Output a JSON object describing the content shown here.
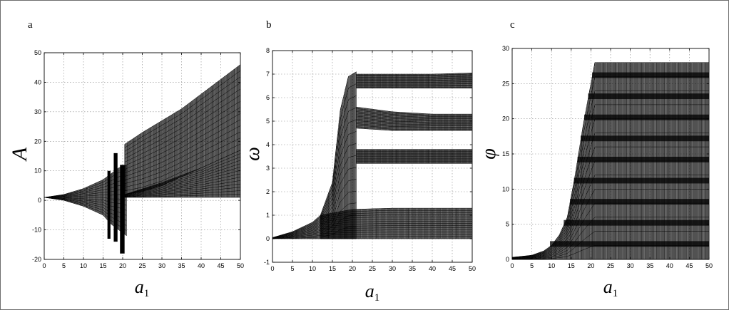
{
  "chart_data": [
    {
      "type": "scatter",
      "panel_label": "a",
      "xlabel": "a",
      "xlabel_sub": "1",
      "ylabel": "A",
      "xlim": [
        0,
        50
      ],
      "ylim": [
        -20,
        50
      ],
      "xticks": [
        0,
        5,
        10,
        15,
        20,
        25,
        30,
        35,
        40,
        45,
        50
      ],
      "yticks": [
        -20,
        -10,
        0,
        10,
        20,
        30,
        40,
        50
      ],
      "grid": true,
      "bands": [
        {
          "x": [
            0,
            5,
            10,
            15,
            17,
            19,
            21
          ],
          "y_low": [
            1,
            0,
            -2,
            -5,
            -8,
            -10,
            -12
          ],
          "y_high": [
            1,
            2,
            4,
            7,
            9,
            11,
            12
          ]
        },
        {
          "x": [
            20.5,
            25,
            30,
            35,
            40,
            45,
            50
          ],
          "y_low": [
            2,
            3,
            5,
            8,
            11,
            14,
            17
          ],
          "y_high": [
            19,
            23,
            27,
            31,
            36,
            41,
            46
          ]
        },
        {
          "x": [
            20.5,
            30,
            40,
            50
          ],
          "y_low": [
            1,
            1,
            1,
            1
          ],
          "y_high": [
            2,
            6,
            11,
            17
          ]
        }
      ],
      "islands": [
        {
          "x": [
            16.2,
            16.8
          ],
          "y": [
            -13,
            10
          ]
        },
        {
          "x": [
            17.8,
            18.6
          ],
          "y": [
            -14,
            16
          ]
        },
        {
          "x": [
            19.4,
            20.4
          ],
          "y": [
            -18,
            12
          ]
        }
      ]
    },
    {
      "type": "scatter",
      "panel_label": "b",
      "xlabel": "a",
      "xlabel_sub": "1",
      "ylabel": "ω",
      "xlim": [
        0,
        50
      ],
      "ylim": [
        -1,
        8
      ],
      "xticks": [
        0,
        5,
        10,
        15,
        20,
        25,
        30,
        35,
        40,
        45,
        50
      ],
      "yticks": [
        -1,
        0,
        1,
        2,
        3,
        4,
        5,
        6,
        7,
        8
      ],
      "grid": true,
      "bands": [
        {
          "x": [
            0,
            5,
            10,
            12,
            15,
            17,
            19,
            21
          ],
          "y_low": [
            0,
            0,
            0,
            0,
            0,
            0,
            0,
            0
          ],
          "y_high": [
            0.05,
            0.3,
            0.7,
            1.0,
            2.4,
            5.5,
            6.9,
            7.1
          ]
        },
        {
          "x": [
            21,
            30,
            40,
            50
          ],
          "y_low": [
            6.4,
            6.4,
            6.4,
            6.4
          ],
          "y_high": [
            7.0,
            7.0,
            7.0,
            7.05
          ]
        },
        {
          "x": [
            21,
            30,
            40,
            50
          ],
          "y_low": [
            4.7,
            4.6,
            4.6,
            4.6
          ],
          "y_high": [
            5.6,
            5.4,
            5.3,
            5.3
          ]
        },
        {
          "x": [
            21,
            30,
            40,
            50
          ],
          "y_low": [
            3.2,
            3.2,
            3.2,
            3.2
          ],
          "y_high": [
            3.8,
            3.8,
            3.8,
            3.8
          ]
        },
        {
          "x": [
            12,
            20,
            30,
            40,
            50
          ],
          "y_low": [
            0,
            0,
            0,
            0,
            0
          ],
          "y_high": [
            1.0,
            1.25,
            1.3,
            1.3,
            1.3
          ]
        }
      ]
    },
    {
      "type": "scatter",
      "panel_label": "c",
      "xlabel": "a",
      "xlabel_sub": "1",
      "ylabel": "φ",
      "xlim": [
        0,
        50
      ],
      "ylim": [
        0,
        30
      ],
      "xticks": [
        0,
        5,
        10,
        15,
        20,
        25,
        30,
        35,
        40,
        45,
        50
      ],
      "yticks": [
        0,
        5,
        10,
        15,
        20,
        25,
        30
      ],
      "grid": true,
      "bands": [
        {
          "x": [
            0,
            5,
            8,
            10,
            12,
            14,
            16,
            18,
            20,
            21,
            50
          ],
          "y_low": [
            0,
            0,
            0,
            0,
            0,
            0,
            0,
            0,
            0,
            0,
            0
          ],
          "y_high": [
            0.3,
            0.6,
            1.2,
            2,
            3.5,
            6,
            12,
            19,
            25,
            28,
            28
          ]
        }
      ],
      "levels": [
        1.8,
        4.8,
        7.8,
        10.8,
        13.8,
        16.8,
        19.8,
        22.8,
        25.8
      ]
    }
  ]
}
